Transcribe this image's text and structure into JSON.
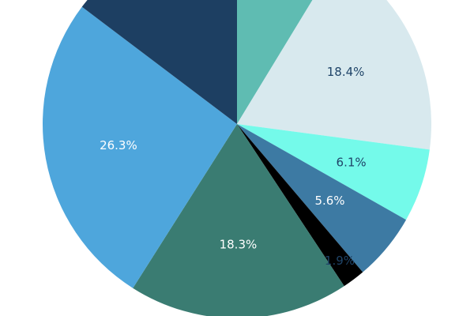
{
  "chart_data": {
    "type": "pie",
    "title": "",
    "slices": [
      {
        "value": 8.7,
        "label": "",
        "color": "#5fbcb2",
        "label_color": "#ffffff"
      },
      {
        "value": 18.4,
        "label": "18.4%",
        "color": "#d8e9ee",
        "label_color": "#1f4468"
      },
      {
        "value": 6.1,
        "label": "6.1%",
        "color": "#74faea",
        "label_color": "#1f4468"
      },
      {
        "value": 5.6,
        "label": "5.6%",
        "color": "#3d7aa3",
        "label_color": "#ffffff"
      },
      {
        "value": 1.9,
        "label": "1.9%",
        "color": "#000000",
        "label_color": "#1f4468"
      },
      {
        "value": 18.3,
        "label": "18.3%",
        "color": "#3a7c72",
        "label_color": "#ffffff"
      },
      {
        "value": 26.3,
        "label": "26.3%",
        "color": "#4ea6dc",
        "label_color": "#ffffff"
      },
      {
        "value": 14.7,
        "label": "",
        "color": "#1d3f62",
        "label_color": "#ffffff"
      }
    ],
    "start_angle_deg": 0,
    "direction": "clockwise",
    "legend": "none"
  }
}
